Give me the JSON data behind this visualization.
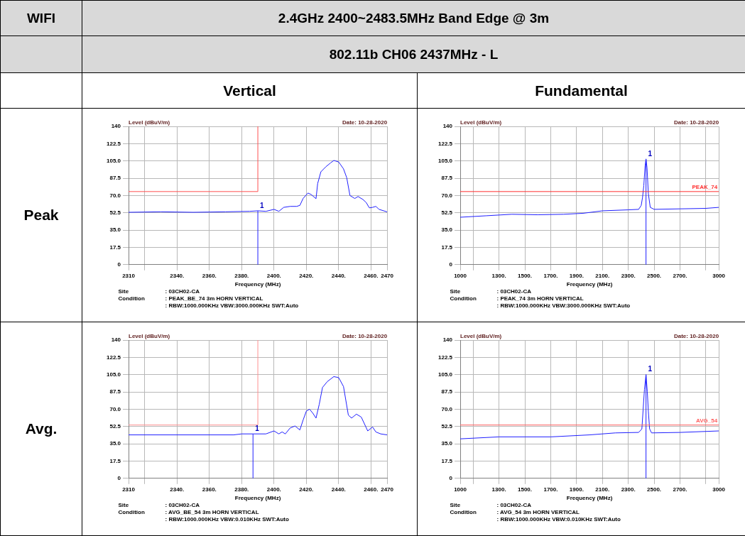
{
  "chart_data": [
    {
      "type": "other",
      "title": "2.4GHz 2400~2483.5MHz Band Edge @ 3m",
      "subtitle": "802.11b CH06 2437MHz - L",
      "annotations": [
        "WIFI",
        "Vertical",
        "Fundamental",
        "Peak",
        "Avg."
      ]
    },
    {
      "type": "line",
      "xlabel": "Frequency (MHz)",
      "ylabel": "Level (dBuV/m)",
      "xlim": [
        2310,
        2470
      ],
      "ylim": [
        0,
        140
      ],
      "xticks": [
        {
          "value": 2310,
          "label": "2310"
        },
        {
          "value": 2320,
          "label": null
        },
        {
          "value": 2340,
          "label": "2340."
        },
        {
          "value": 2360,
          "label": "2360."
        },
        {
          "value": 2380,
          "label": "2380."
        },
        {
          "value": 2400,
          "label": "2400."
        },
        {
          "value": 2420,
          "label": "2420."
        },
        {
          "value": 2440,
          "label": "2440."
        },
        {
          "value": 2460,
          "label": "2460."
        },
        {
          "value": 2470,
          "label": "2470"
        }
      ],
      "yticks": [
        0,
        17.5,
        {
          "value": 35,
          "label": "35.0"
        },
        52.5,
        {
          "value": 70,
          "label": "70.0"
        },
        87.5,
        {
          "value": 105,
          "label": "105.0"
        },
        122.5,
        140
      ],
      "grid": true,
      "marker": "none",
      "series": [
        {
          "color": "#2020ff",
          "x": [
            2310,
            2330,
            2350,
            2370,
            2385,
            2390,
            2395,
            2400,
            2403,
            2406,
            2410,
            2414,
            2416,
            2418,
            2421,
            2423,
            2426,
            2427,
            2429,
            2432,
            2435,
            2437,
            2440,
            2443,
            2445,
            2447,
            2450,
            2452,
            2455,
            2457,
            2459,
            2461,
            2463,
            2465,
            2470
          ],
          "values": [
            53,
            53.5,
            53,
            53.5,
            54,
            54.5,
            54,
            56,
            54,
            58,
            59,
            59,
            60,
            67,
            72.5,
            71,
            66.8,
            82,
            94,
            99,
            103,
            105.5,
            104,
            97,
            88,
            70,
            67,
            69,
            66,
            63,
            57.5,
            58,
            59,
            56,
            53.4
          ]
        },
        {
          "color": "#ff5050",
          "x": [
            2310,
            2390,
            2390
          ],
          "values": [
            74,
            74,
            140
          ]
        }
      ],
      "ref_lines": [
        {
          "axis": "x",
          "value": 2390,
          "color": "#2020ff"
        }
      ],
      "annotations": [
        "Date: 10-28-2020",
        {
          "text": "1",
          "x": 2390,
          "y": 54.5
        },
        "Site",
        ": 03CH02-CA",
        "Condition",
        ": PEAK_BE_74 3m HORN VERTICAL",
        ": RBW:1000.000KHz VBW:3000.000KHz SWT:Auto"
      ]
    },
    {
      "type": "line",
      "xlabel": "Frequency (MHz)",
      "ylabel": "Level (dBuV/m)",
      "xlim": [
        1000,
        3000
      ],
      "ylim": [
        0,
        140
      ],
      "xticks": [
        {
          "value": 1000,
          "label": "1000"
        },
        {
          "value": 1100,
          "label": null
        },
        {
          "value": 1300,
          "label": "1300."
        },
        {
          "value": 1500,
          "label": "1500."
        },
        {
          "value": 1700,
          "label": "1700."
        },
        {
          "value": 1900,
          "label": "1900."
        },
        {
          "value": 2100,
          "label": "2100."
        },
        {
          "value": 2300,
          "label": "2300."
        },
        {
          "value": 2500,
          "label": "2500."
        },
        {
          "value": 2700,
          "label": "2700."
        },
        {
          "value": 2900,
          "label": null
        },
        {
          "value": 3000,
          "label": "3000"
        }
      ],
      "yticks": [
        0,
        17.5,
        {
          "value": 35,
          "label": "35.0"
        },
        52.5,
        {
          "value": 70,
          "label": "70.0"
        },
        87.5,
        {
          "value": 105,
          "label": "105.0"
        },
        122.5,
        140
      ],
      "grid": true,
      "marker": "none",
      "series": [
        {
          "color": "#2020ff",
          "x": [
            1000,
            1200,
            1400,
            1600,
            1800,
            1950,
            2100,
            2300,
            2380,
            2400,
            2410,
            2420,
            2430,
            2437,
            2445,
            2455,
            2470,
            2500,
            2700,
            2900,
            3000
          ],
          "values": [
            48,
            49.5,
            51,
            50.5,
            51,
            52,
            54.5,
            55.5,
            56,
            60,
            68,
            80,
            100,
            107,
            98,
            72,
            58,
            56,
            56.5,
            57,
            58
          ]
        }
      ],
      "ref_lines": [
        {
          "axis": "x",
          "value": 2437,
          "color": "#2020ff"
        },
        {
          "axis": "y",
          "value": 74,
          "label": "PEAK_74",
          "color": "#ff3030"
        }
      ],
      "annotations": [
        "Date: 10-28-2020",
        {
          "text": "1",
          "x": 2437,
          "y": 107
        },
        "Site",
        ": 03CH02-CA",
        "Condition",
        ": PEAK_74 3m HORN VERTICAL",
        ": RBW:1000.000KHz VBW:3000.000KHz SWT:Auto"
      ]
    },
    {
      "type": "line",
      "xlabel": "Frequency (MHz)",
      "ylabel": "Level (dBuV/m)",
      "xlim": [
        2310,
        2470
      ],
      "ylim": [
        0,
        140
      ],
      "xticks": [
        {
          "value": 2310,
          "label": "2310"
        },
        {
          "value": 2320,
          "label": null
        },
        {
          "value": 2340,
          "label": "2340."
        },
        {
          "value": 2360,
          "label": "2360."
        },
        {
          "value": 2380,
          "label": "2380."
        },
        {
          "value": 2400,
          "label": "2400."
        },
        {
          "value": 2420,
          "label": "2420."
        },
        {
          "value": 2440,
          "label": "2440."
        },
        {
          "value": 2460,
          "label": "2460."
        },
        {
          "value": 2470,
          "label": "2470"
        }
      ],
      "yticks": [
        0,
        17.5,
        {
          "value": 35,
          "label": "35.0"
        },
        52.5,
        {
          "value": 70,
          "label": "70.0"
        },
        87.5,
        {
          "value": 105,
          "label": "105.0"
        },
        122.5,
        140
      ],
      "grid": true,
      "marker": "none",
      "series": [
        {
          "color": "#2020ff",
          "x": [
            2310,
            2375,
            2380,
            2387,
            2395,
            2400,
            2403,
            2405,
            2407,
            2410,
            2413,
            2416,
            2418,
            2420,
            2422,
            2424,
            2426,
            2428,
            2430,
            2433,
            2437,
            2440,
            2443,
            2446,
            2448,
            2451,
            2454,
            2458,
            2461,
            2463,
            2466,
            2470
          ],
          "values": [
            44,
            44,
            45,
            45,
            45,
            48,
            45,
            47,
            45,
            51,
            53,
            49,
            59,
            68,
            70,
            66,
            61,
            75,
            92,
            98,
            103,
            102,
            93,
            64,
            61,
            65,
            62,
            48,
            52,
            47,
            45,
            44
          ]
        },
        {
          "color": "#ff9090",
          "x": [
            2310,
            2390,
            2390
          ],
          "values": [
            54,
            54,
            140
          ]
        }
      ],
      "ref_lines": [
        {
          "axis": "x",
          "value": 2387,
          "color": "#2020ff"
        }
      ],
      "annotations": [
        "Date: 10-28-2020",
        {
          "text": "1",
          "x": 2387,
          "y": 45
        },
        "Site",
        ": 03CH02-CA",
        "Condition",
        ": AVG_BE_54 3m HORN VERTICAL",
        ": RBW:1000.000KHz VBW:0.010KHz SWT:Auto"
      ]
    },
    {
      "type": "line",
      "xlabel": "Frequency (MHz)",
      "ylabel": "Level (dBuV/m)",
      "xlim": [
        1000,
        3000
      ],
      "ylim": [
        0,
        140
      ],
      "xticks": [
        {
          "value": 1000,
          "label": "1000"
        },
        {
          "value": 1100,
          "label": null
        },
        {
          "value": 1300,
          "label": "1300."
        },
        {
          "value": 1500,
          "label": "1500."
        },
        {
          "value": 1700,
          "label": "1700."
        },
        {
          "value": 1900,
          "label": "1900."
        },
        {
          "value": 2100,
          "label": "2100."
        },
        {
          "value": 2300,
          "label": "2300."
        },
        {
          "value": 2500,
          "label": "2500."
        },
        {
          "value": 2700,
          "label": "2700."
        },
        {
          "value": 2900,
          "label": null
        },
        {
          "value": 3000,
          "label": "3000"
        }
      ],
      "yticks": [
        0,
        17.5,
        {
          "value": 35,
          "label": "35.0"
        },
        52.5,
        {
          "value": 70,
          "label": "70.0"
        },
        87.5,
        {
          "value": 105,
          "label": "105.0"
        },
        122.5,
        140
      ],
      "grid": true,
      "marker": "none",
      "series": [
        {
          "color": "#2020ff",
          "x": [
            1000,
            1300,
            1700,
            2000,
            2200,
            2380,
            2405,
            2415,
            2425,
            2437,
            2447,
            2455,
            2465,
            2480,
            2700,
            3000
          ],
          "values": [
            40,
            42,
            42,
            44,
            46,
            46.5,
            50,
            70,
            90,
            105,
            88,
            68,
            50,
            46,
            46.5,
            48
          ]
        }
      ],
      "ref_lines": [
        {
          "axis": "x",
          "value": 2437,
          "color": "#2020ff"
        },
        {
          "axis": "y",
          "value": 54,
          "label": "AVG_54",
          "color": "#ff6060"
        }
      ],
      "annotations": [
        "Date: 10-28-2020",
        {
          "text": "1",
          "x": 2437,
          "y": 105
        },
        "Site",
        ": 03CH02-CA",
        "Condition",
        ": AVG_54 3m HORN VERTICAL",
        ": RBW:1000.000KHz VBW:0.010KHz SWT:Auto"
      ]
    }
  ]
}
